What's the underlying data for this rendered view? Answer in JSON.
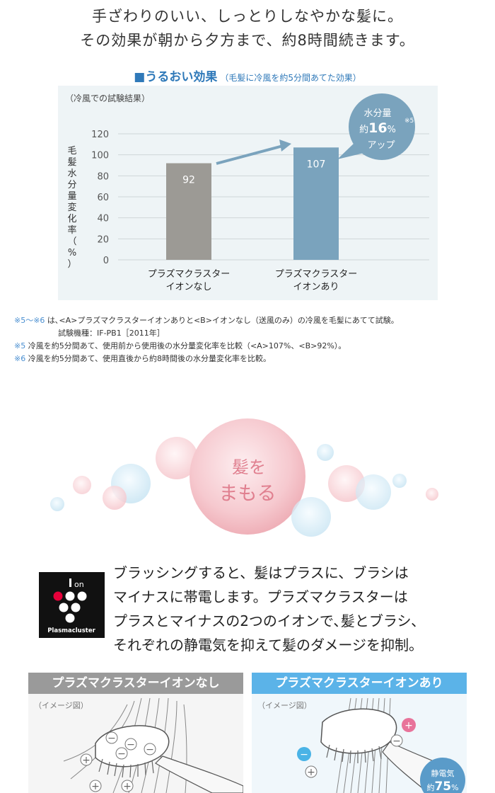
{
  "intro": {
    "line1": "手ざわりのいい、しっとりしなやかな髪に。",
    "line2": "その効果が朝から夕方まで、約8時間続きます。"
  },
  "heading": {
    "title": "■うるおい効果",
    "subtitle": "（毛髪に冷風を約5分間あてた効果）"
  },
  "chart_data": {
    "type": "bar",
    "title": "",
    "note": "（冷風での試験結果）",
    "ylabel": "毛髪水分量変化率（%）",
    "ylim": [
      0,
      120
    ],
    "yticks": [
      0,
      20,
      40,
      60,
      80,
      100,
      120
    ],
    "categories": [
      "プラズマクラスターイオンなし",
      "プラズマクラスターイオンあり"
    ],
    "category_lines": [
      [
        "プラズマクラスター",
        "イオンなし"
      ],
      [
        "プラズマクラスター",
        "イオンあり"
      ]
    ],
    "values": [
      92,
      107
    ],
    "value_labels": [
      "92",
      "107"
    ],
    "bar_colors": [
      "#9c9a95",
      "#7aa3bd"
    ],
    "grid": true,
    "callout": {
      "line1": "水分量",
      "line2_prefix": "約",
      "line2_value": "16",
      "line2_unit": "%",
      "note_mark": "※5",
      "line3": "アップ",
      "color": "#7aa3bd"
    }
  },
  "notes": [
    {
      "mark": "※5〜※6",
      "text": " は､<A>プラズマクラスターイオンありと<B>イオンなし（送風のみ）の冷風を毛髪にあてて試験。"
    },
    {
      "mark": "",
      "text": "試験機種：IF-PB1［2011年］"
    },
    {
      "mark": "※5",
      "text": " 冷風を約5分間あて、使用前から使用後の水分量変化率を比較（<A>107%、<B>92%）。"
    },
    {
      "mark": "※6",
      "text": " 冷風を約5分間あて、使用直後から約8時間後の水分量変化率を比較。"
    }
  ],
  "bubble": {
    "line1": "髪を",
    "line2": "まもる"
  },
  "logo": {
    "top": "on",
    "name": "Plasmacluster"
  },
  "ion_description": {
    "line1": "ブラッシングすると、髪はプラスに、ブラシは",
    "line2": "マイナスに帯電します。プラズマクラスターは",
    "line3": "プラスとマイナスの2つのイオンで､髪とブラシ、",
    "line4": "それぞれの静電気を抑えて髪のダメージを抑制。"
  },
  "panels": {
    "left_title": "プラズマクラスターイオンなし",
    "left_label": "（イメージ図）",
    "right_title": "プラズマクラスターイオンあり",
    "right_label": "（イメージ図）",
    "static_line1": "静電気",
    "static_line2_prefix": "約",
    "static_line2_value": "75",
    "static_line2_unit": "%"
  },
  "colors": {
    "heading": "#2f79b9",
    "note_mark": "#4a8fd1",
    "bubble_text": "#e07f8f",
    "panel_left": "#9a9a9a",
    "panel_right": "#5bb3e8"
  }
}
